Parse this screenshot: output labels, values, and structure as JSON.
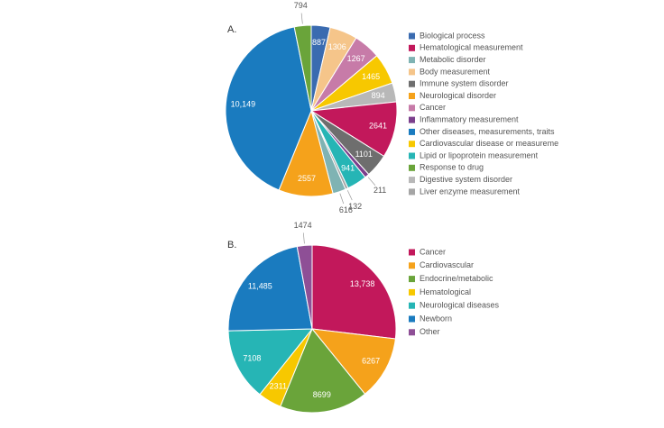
{
  "chart_data": [
    {
      "type": "pie",
      "title": "A.",
      "categories": [
        "Biological process",
        "Body measurement",
        "Cancer",
        "Cardiovascular disease or measureme",
        "Digestive system disorder",
        "Hematological measurement",
        "Immune system disorder",
        "Inflammatory measurement",
        "Lipid or lipoprotein measurement",
        "Liver enzyme measurement",
        "Metabolic disorder",
        "Neurological disorder",
        "Other diseases, measurements, traits",
        "Response to drug"
      ],
      "values": [
        887,
        1306,
        1267,
        1465,
        894,
        2641,
        1101,
        211,
        941,
        132,
        616,
        2557,
        10149,
        794
      ],
      "value_labels": [
        "887",
        "1306",
        "1267",
        "1465",
        "894",
        "2641",
        "1101",
        "211",
        "941",
        "132",
        "616",
        "2557",
        "10,149",
        "794"
      ],
      "colors": [
        "#3a6bb0",
        "#f5c58a",
        "#c77ba8",
        "#f7c800",
        "#b8b8b8",
        "#c2185b",
        "#6e6e6e",
        "#7b3f8c",
        "#26b5b5",
        "#a5a5a5",
        "#7fb3b3",
        "#f5a21b",
        "#1a7bbf",
        "#6aa43a"
      ]
    },
    {
      "type": "pie",
      "title": "B.",
      "categories": [
        "Cancer",
        "Cardiovascular",
        "Endocrine/metabolic",
        "Hematological",
        "Neurological diseases",
        "Newborn",
        "Other"
      ],
      "values": [
        13738,
        6267,
        8699,
        2311,
        7108,
        11485,
        1474
      ],
      "value_labels": [
        "13,738",
        "6267",
        "8699",
        "2311",
        "7108",
        "11,485",
        "1474"
      ],
      "colors": [
        "#c2185b",
        "#f5a21b",
        "#6aa43a",
        "#f7c800",
        "#26b5b5",
        "#1a7bbf",
        "#8e4f96"
      ]
    }
  ]
}
